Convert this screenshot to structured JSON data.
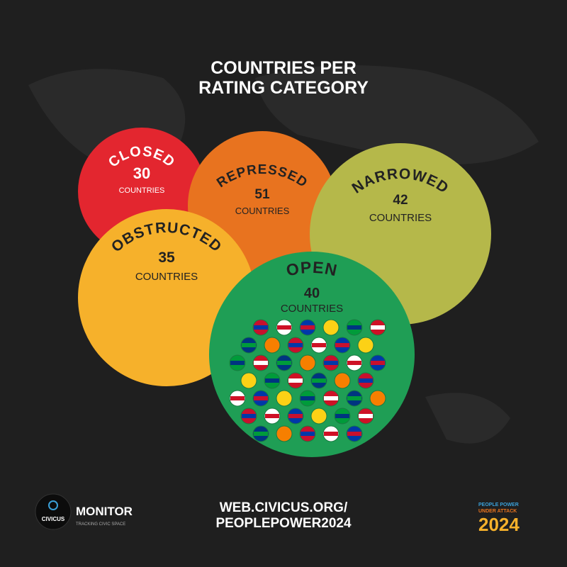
{
  "title": [
    "COUNTRIES PER",
    "RATING CATEGORY"
  ],
  "categories": [
    {
      "name": "CLOSED",
      "count": "30",
      "unit": "COUNTRIES",
      "color": "#e3262f"
    },
    {
      "name": "REPRESSED",
      "count": "51",
      "unit": "COUNTRIES",
      "color": "#e8731f"
    },
    {
      "name": "NARROWED",
      "count": "42",
      "unit": "COUNTRIES",
      "color": "#b5b84a"
    },
    {
      "name": "OBSTRUCTED",
      "count": "35",
      "unit": "COUNTRIES",
      "color": "#f6b12b"
    },
    {
      "name": "OPEN",
      "count": "40",
      "unit": "COUNTRIES",
      "color": "#1f9e55"
    }
  ],
  "footer": {
    "logo": "CIVICUS",
    "brand": "MONITOR",
    "tagline": "TRACKING CIVIC SPACE",
    "url": [
      "WEB.CIVICUS.ORG/",
      "PEOPLEPOWER2024"
    ],
    "badge": [
      "PEOPLE POWER",
      "UNDER ATTACK",
      "2024"
    ]
  }
}
